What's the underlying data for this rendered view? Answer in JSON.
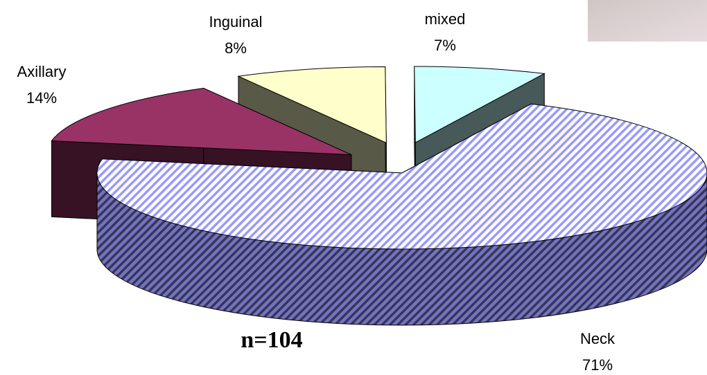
{
  "chart_data": {
    "type": "pie3d",
    "categories": [
      "Neck",
      "Axillary",
      "Inguinal",
      "mixed"
    ],
    "values": [
      71,
      14,
      8,
      7
    ],
    "value_labels": [
      "71%",
      "14%",
      "8%",
      "7%"
    ],
    "colors": [
      "#9999ff",
      "#993366",
      "#ffffcc",
      "#ccffff"
    ],
    "annotation": "n=104"
  }
}
